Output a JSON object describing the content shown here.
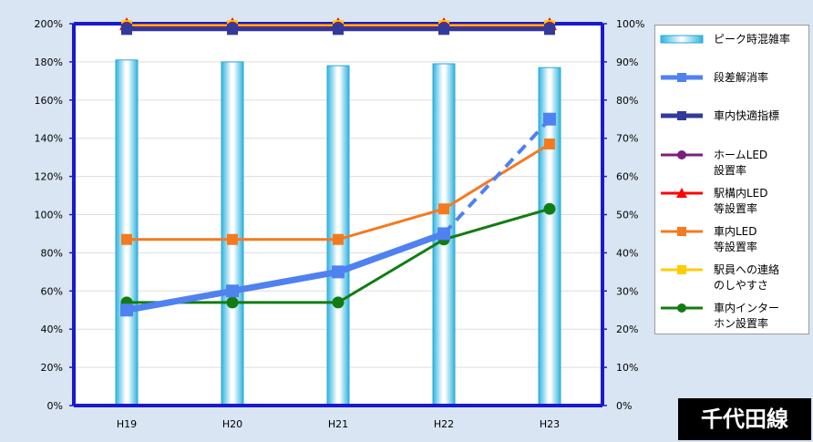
{
  "chart_data": {
    "type": "bar",
    "categories": [
      "H19",
      "H20",
      "H21",
      "H22",
      "H23"
    ],
    "y_left": {
      "ylim": [
        0,
        200
      ],
      "ticks": [
        "0%",
        "20%",
        "40%",
        "60%",
        "80%",
        "100%",
        "120%",
        "140%",
        "160%",
        "180%",
        "200%"
      ]
    },
    "y_right": {
      "ylim": [
        0,
        100
      ],
      "ticks": [
        "0%",
        "10%",
        "20%",
        "30%",
        "40%",
        "50%",
        "60%",
        "70%",
        "80%",
        "90%",
        "100%"
      ]
    },
    "series": [
      {
        "name": "ピーク時混雑率",
        "type": "bar",
        "axis": "left",
        "color": "#4fc3e8",
        "values": [
          181,
          180,
          178,
          179,
          177
        ]
      },
      {
        "name": "段差解消率",
        "type": "line",
        "axis": "right",
        "color": "#4f81f0",
        "marker": "square",
        "values": [
          25,
          30,
          35,
          45,
          75
        ]
      },
      {
        "name": "車内快適指標",
        "type": "line",
        "axis": "right",
        "color": "#333a99",
        "marker": "square",
        "values": [
          98.5,
          98.5,
          98.5,
          98.5,
          98.5
        ]
      },
      {
        "name": "ホームLED\n設置率",
        "type": "line",
        "axis": "right",
        "color": "#7b1f7b",
        "marker": "circle",
        "values": [
          99,
          99,
          99,
          99,
          99
        ]
      },
      {
        "name": "駅構内LED\n等設置率",
        "type": "line",
        "axis": "right",
        "color": "#ff0000",
        "marker": "triangle",
        "values": [
          99.5,
          99.5,
          99.5,
          99.5,
          99.5
        ]
      },
      {
        "name": "車内LED\n等設置率",
        "type": "line",
        "axis": "right",
        "color": "#f47a20",
        "marker": "square",
        "values": [
          43.5,
          43.5,
          43.5,
          51.5,
          68.5
        ]
      },
      {
        "name": "駅員への連絡\nのしやすさ",
        "type": "line",
        "axis": "right",
        "color": "#ffcc00",
        "marker": "square",
        "values": [
          99.5,
          99.5,
          99.5,
          99.5,
          99.5
        ]
      },
      {
        "name": "車内インター\nホン設置率",
        "type": "line",
        "axis": "right",
        "color": "#127c12",
        "marker": "circle",
        "values": [
          27,
          27,
          27,
          43.5,
          51.5
        ]
      }
    ],
    "legend_position": "right"
  },
  "badge": {
    "label": "千代田線"
  }
}
